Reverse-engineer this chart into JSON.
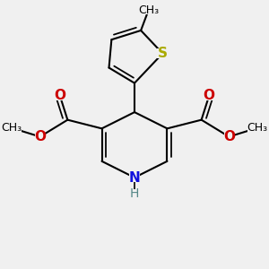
{
  "background_color": "#f0f0f0",
  "bond_color": "#000000",
  "bond_width": 1.5,
  "dbo": 0.08,
  "atoms": {
    "N": {
      "color": "#1010dd",
      "fontsize": 11,
      "fontweight": "bold"
    },
    "H_on_N": {
      "color": "#558888",
      "fontsize": 10,
      "fontweight": "normal"
    },
    "O": {
      "color": "#cc0000",
      "fontsize": 11,
      "fontweight": "bold"
    },
    "S": {
      "color": "#aaaa00",
      "fontsize": 11,
      "fontweight": "bold"
    },
    "C": {
      "color": "#000000",
      "fontsize": 9,
      "fontweight": "normal"
    }
  },
  "figsize": [
    3.0,
    3.0
  ],
  "dpi": 100,
  "xlim": [
    0,
    10
  ],
  "ylim": [
    0,
    10
  ]
}
